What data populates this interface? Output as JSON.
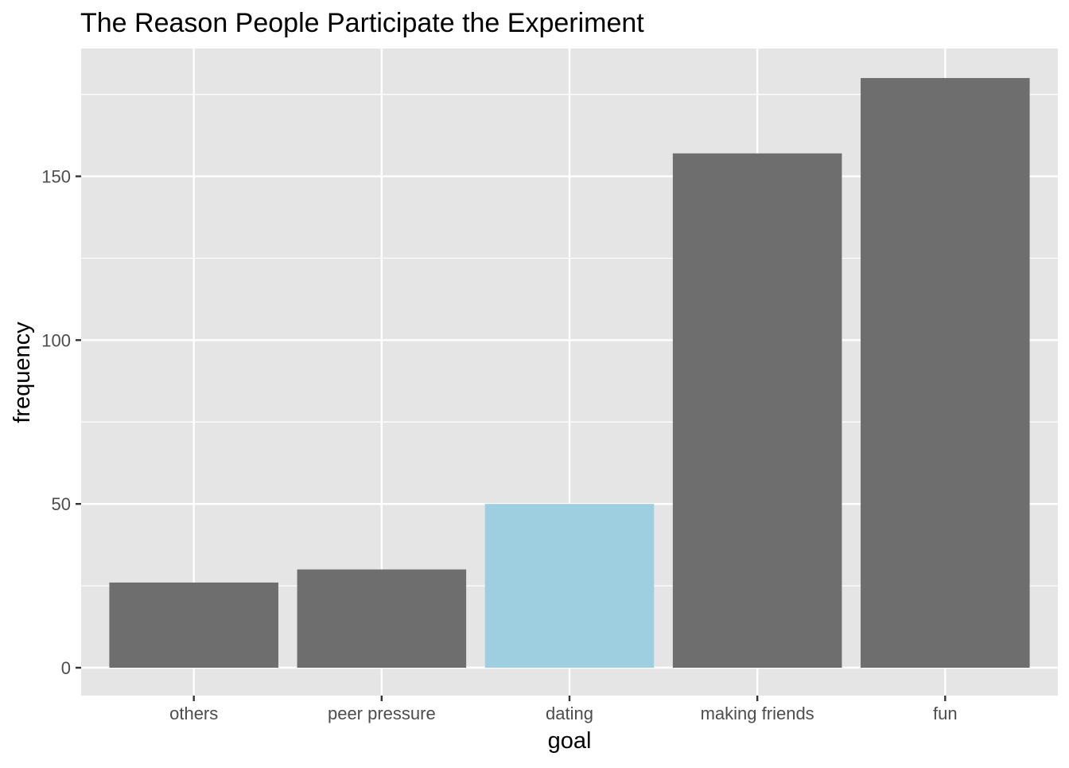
{
  "chart_data": {
    "type": "bar",
    "title": "The Reason People Participate the Experiment",
    "xlabel": "goal",
    "ylabel": "frequency",
    "categories": [
      "others",
      "peer pressure",
      "dating",
      "making friends",
      "fun"
    ],
    "values": [
      26,
      30,
      50,
      157,
      180
    ],
    "highlight_category": "dating",
    "ylim": [
      -8.5,
      189
    ],
    "yticks": [
      0,
      50,
      100,
      150
    ],
    "grid": true,
    "colors": {
      "bar": "#6e6e6e",
      "highlight": "#9ecfe0",
      "panel": "#e5e5e5",
      "grid": "#ffffff",
      "axis_text": "#4d4d4d",
      "title_text": "#000000"
    }
  }
}
